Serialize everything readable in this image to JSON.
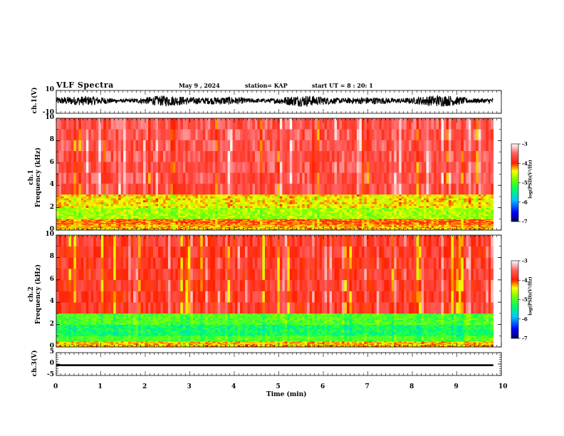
{
  "header": {
    "title": "VLF Spectra",
    "date": "May 9 , 2024",
    "station": "station= KAP",
    "start_ut": "start UT = 8 : 20: 1"
  },
  "labels": {
    "ch1_volt": "ch.1(V)",
    "ch1_freq": "ch.1\nFrequency (kHz)",
    "ch2_freq": "ch.2\nFrequency (kHz)",
    "ch3_volt": "ch.3(V)",
    "x_axis": "Time (min)",
    "colorbar": "log(PSD)(V²/Hz)"
  },
  "colors": {
    "background": "#ffffff",
    "axis": "#000000",
    "colorbar_stops": [
      "#000080",
      "#0000ff",
      "#00ffff",
      "#00ff00",
      "#ffff00",
      "#ff0000",
      "#ffffff"
    ]
  },
  "chart_data": [
    {
      "type": "line",
      "name": "ch.1 waveform",
      "ylabel": "ch.1(V)",
      "ylim": [
        -10,
        10
      ],
      "y_ticks": [
        "10",
        "-10"
      ],
      "xlim": [
        0,
        10
      ],
      "note": "dense oscillating signal between about -5 and 5 V over 0–9.8 min"
    },
    {
      "type": "heatmap",
      "name": "ch.1 spectrogram",
      "ylabel": "Frequency (kHz)",
      "ylim": [
        0,
        10
      ],
      "y_ticks": [
        "0",
        "2",
        "4",
        "6",
        "8",
        "10"
      ],
      "xlim": [
        0,
        10
      ],
      "colorbar": {
        "label": "log(PSD)(V²/Hz)",
        "range": [
          -7,
          -3
        ],
        "ticks": [
          "-3",
          "-4",
          "-5",
          "-6",
          "-7"
        ]
      },
      "bands": [
        {
          "from_khz": 0.0,
          "to_khz": 0.5,
          "level": -4.3
        },
        {
          "from_khz": 0.5,
          "to_khz": 1.0,
          "level": -4.1
        },
        {
          "from_khz": 1.0,
          "to_khz": 2.0,
          "level": -4.7
        },
        {
          "from_khz": 2.0,
          "to_khz": 3.2,
          "level": -4.4
        },
        {
          "from_khz": 3.2,
          "to_khz": 10.0,
          "level": -3.6
        }
      ]
    },
    {
      "type": "heatmap",
      "name": "ch.2 spectrogram",
      "ylabel": "Frequency (kHz)",
      "ylim": [
        0,
        10
      ],
      "y_ticks": [
        "0",
        "2",
        "4",
        "6",
        "8",
        "10"
      ],
      "xlim": [
        0,
        10
      ],
      "colorbar": {
        "label": "log(PSD)(V²/Hz)",
        "range": [
          -7,
          -3
        ],
        "ticks": [
          "-3",
          "-4",
          "-5",
          "-6",
          "-7"
        ]
      },
      "bands": [
        {
          "from_khz": 0.0,
          "to_khz": 0.5,
          "level": -4.3
        },
        {
          "from_khz": 0.5,
          "to_khz": 1.0,
          "level": -5.0
        },
        {
          "from_khz": 1.0,
          "to_khz": 2.0,
          "level": -5.3
        },
        {
          "from_khz": 2.0,
          "to_khz": 3.0,
          "level": -5.0
        },
        {
          "from_khz": 3.0,
          "to_khz": 10.0,
          "level": -3.8
        }
      ]
    },
    {
      "type": "line",
      "name": "ch.3 waveform",
      "ylabel": "ch.3(V)",
      "ylim": [
        -5,
        5
      ],
      "y_ticks": [
        "5",
        "0",
        "-5"
      ],
      "xlim": [
        0,
        10
      ],
      "note": "narrow nearly flat band around -0.5 V"
    },
    {
      "type": "axis",
      "xlabel": "Time (min)",
      "xlim": [
        0,
        10
      ],
      "x_ticks": [
        "0",
        "1",
        "2",
        "3",
        "4",
        "5",
        "6",
        "7",
        "8",
        "9",
        "10"
      ]
    }
  ]
}
